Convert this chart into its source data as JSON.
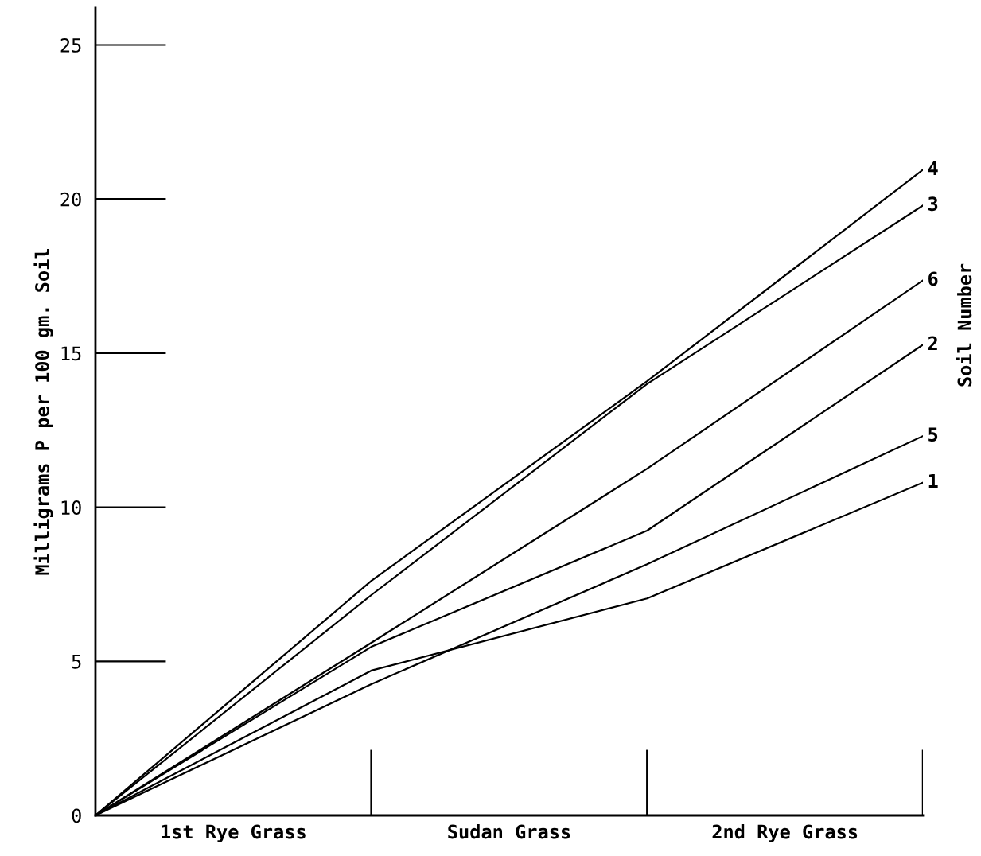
{
  "chart_data": {
    "type": "line",
    "ylabel": "Milligrams P per 100 gm. Soil",
    "legend_title": "Soil Number",
    "x": [
      0,
      1,
      2,
      3
    ],
    "xlim": [
      0,
      3
    ],
    "ylim": [
      0,
      26.2
    ],
    "xticks": [
      {
        "value": 0.5,
        "label": "1st Rye Grass"
      },
      {
        "value": 1.5,
        "label": "Sudan Grass"
      },
      {
        "value": 2.5,
        "label": "2nd Rye Grass"
      }
    ],
    "ref_lines": [
      {
        "axis": "x",
        "value": 1,
        "color": "#000000"
      },
      {
        "axis": "x",
        "value": 2,
        "color": "#000000"
      },
      {
        "axis": "x",
        "value": 3,
        "color": "#000000"
      },
      {
        "axis": "y",
        "value": 5,
        "color": "#000000"
      },
      {
        "axis": "y",
        "value": 10,
        "color": "#000000"
      },
      {
        "axis": "y",
        "value": 15,
        "color": "#000000"
      },
      {
        "axis": "y",
        "value": 20,
        "color": "#000000"
      },
      {
        "axis": "y",
        "value": 25,
        "color": "#000000"
      }
    ],
    "yticks": [
      0,
      5,
      10,
      15,
      20,
      25
    ],
    "grid": false,
    "legend": "right",
    "marker": "none",
    "line_style": "solid",
    "series": [
      {
        "name": "1",
        "color": "#000000",
        "values": [
          0,
          4.7,
          7.04,
          10.8
        ]
      },
      {
        "name": "2",
        "color": "#000000",
        "values": [
          0,
          5.47,
          9.24,
          15.27
        ]
      },
      {
        "name": "3",
        "color": "#000000",
        "values": [
          0,
          7.15,
          14.0,
          19.79
        ]
      },
      {
        "name": "4",
        "color": "#000000",
        "values": [
          0,
          7.61,
          14.09,
          20.95
        ]
      },
      {
        "name": "5",
        "color": "#000000",
        "values": [
          0,
          4.26,
          8.15,
          12.31
        ]
      },
      {
        "name": "6",
        "color": "#000000",
        "values": [
          0,
          5.6,
          11.25,
          17.36
        ]
      }
    ]
  }
}
